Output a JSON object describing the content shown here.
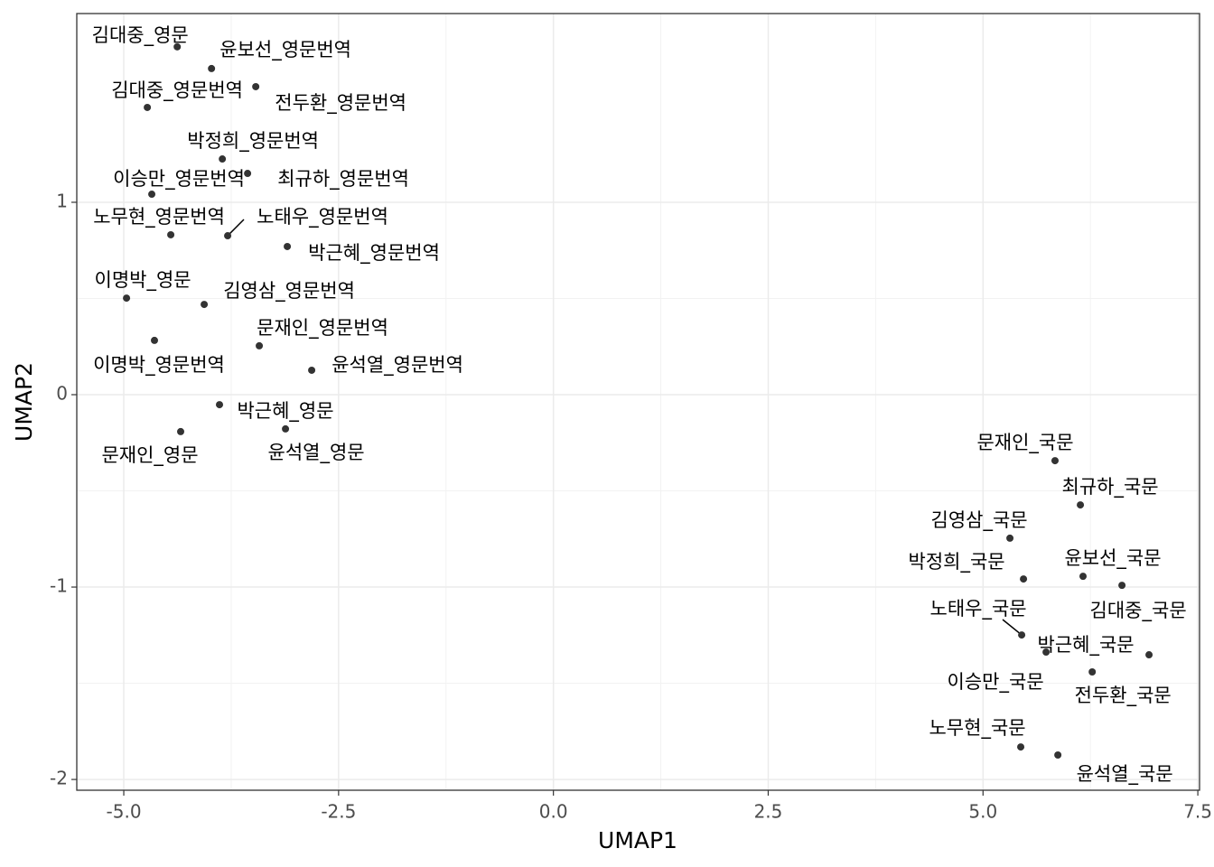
{
  "chart_data": {
    "type": "scatter",
    "x_label": "UMAP1",
    "y_label": "UMAP2",
    "xlim": [
      -5.547,
      7.52
    ],
    "ylim": [
      -2.056,
      1.981
    ],
    "xticks": [
      {
        "value": -5,
        "label": "-5.0"
      },
      {
        "value": -2.5,
        "label": "-2.5"
      },
      {
        "value": 0,
        "label": "0.0"
      },
      {
        "value": 2.5,
        "label": "2.5"
      },
      {
        "value": 5,
        "label": "5.0"
      },
      {
        "value": 7.5,
        "label": "7.5"
      }
    ],
    "yticks": [
      -2,
      -1,
      0,
      1
    ],
    "grid": true,
    "color": "#333333",
    "labels": [
      "김대중_영문",
      "윤보선_영문번역",
      "김대중_영문번역",
      "전두환_영문번역",
      "박정희_영문번역",
      "최규하_영문번역",
      "이승만_영문번역",
      "노무현_영문번역",
      "노태우_영문번역",
      "박근혜_영문번역",
      "이명박_영문",
      "김영삼_영문번역",
      "문재인_영문번역",
      "이명박_영문번역",
      "윤석열_영문번역",
      "박근혜_영문",
      "문재인_영문",
      "윤석열_영문",
      "문재인_국문",
      "최규하_국문",
      "김영삼_국문",
      "박정희_국문",
      "윤보선_국문",
      "김대중_국문",
      "노태우_국문",
      "이승만_국문",
      "박근혜_국문",
      "전두환_국문",
      "노무현_국문",
      "윤석열_국문"
    ],
    "x": [
      -4.378,
      -3.979,
      -4.726,
      -3.464,
      -3.853,
      -3.559,
      -4.674,
      -4.453,
      -3.791,
      -3.097,
      -4.968,
      -4.064,
      -3.423,
      -4.643,
      -2.813,
      -3.886,
      -4.338,
      -3.118,
      5.838,
      6.133,
      5.313,
      5.471,
      6.164,
      6.617,
      5.45,
      5.734,
      6.932,
      6.271,
      5.439,
      5.871
    ],
    "y": [
      1.808,
      1.695,
      1.493,
      1.601,
      1.225,
      1.15,
      1.042,
      0.831,
      0.826,
      0.77,
      0.502,
      0.469,
      0.254,
      0.282,
      0.127,
      -0.052,
      -0.192,
      -0.178,
      -0.343,
      -0.573,
      -0.746,
      -0.958,
      -0.944,
      -0.991,
      -1.249,
      -1.338,
      -1.352,
      -1.441,
      -1.831,
      -1.873
    ]
  }
}
